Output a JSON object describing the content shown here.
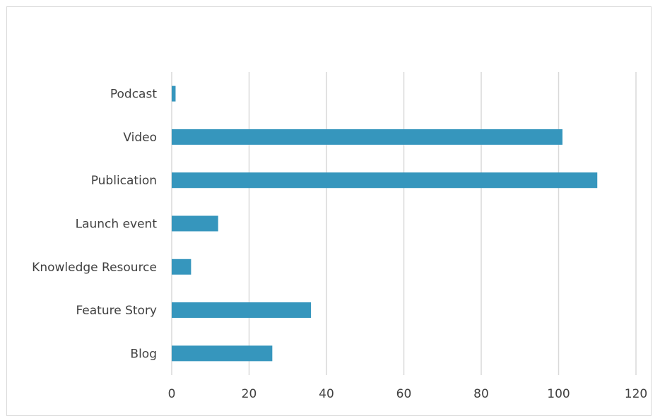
{
  "chart_data": {
    "type": "bar",
    "orientation": "horizontal",
    "title": "",
    "xlabel": "",
    "ylabel": "",
    "categories": [
      "Podcast",
      "Video",
      "Publication",
      "Launch event",
      "Knowledge Resource",
      "Feature Story",
      "Blog"
    ],
    "values": [
      1,
      101,
      110,
      12,
      5,
      36,
      26
    ],
    "xlim": [
      0,
      120
    ],
    "xticks": [
      "0",
      "20",
      "40",
      "60",
      "80",
      "100",
      "120"
    ],
    "grid": "vertical",
    "legend": "none",
    "bar_color": "#3696bd",
    "gridline_color": "#d9d9d9"
  }
}
